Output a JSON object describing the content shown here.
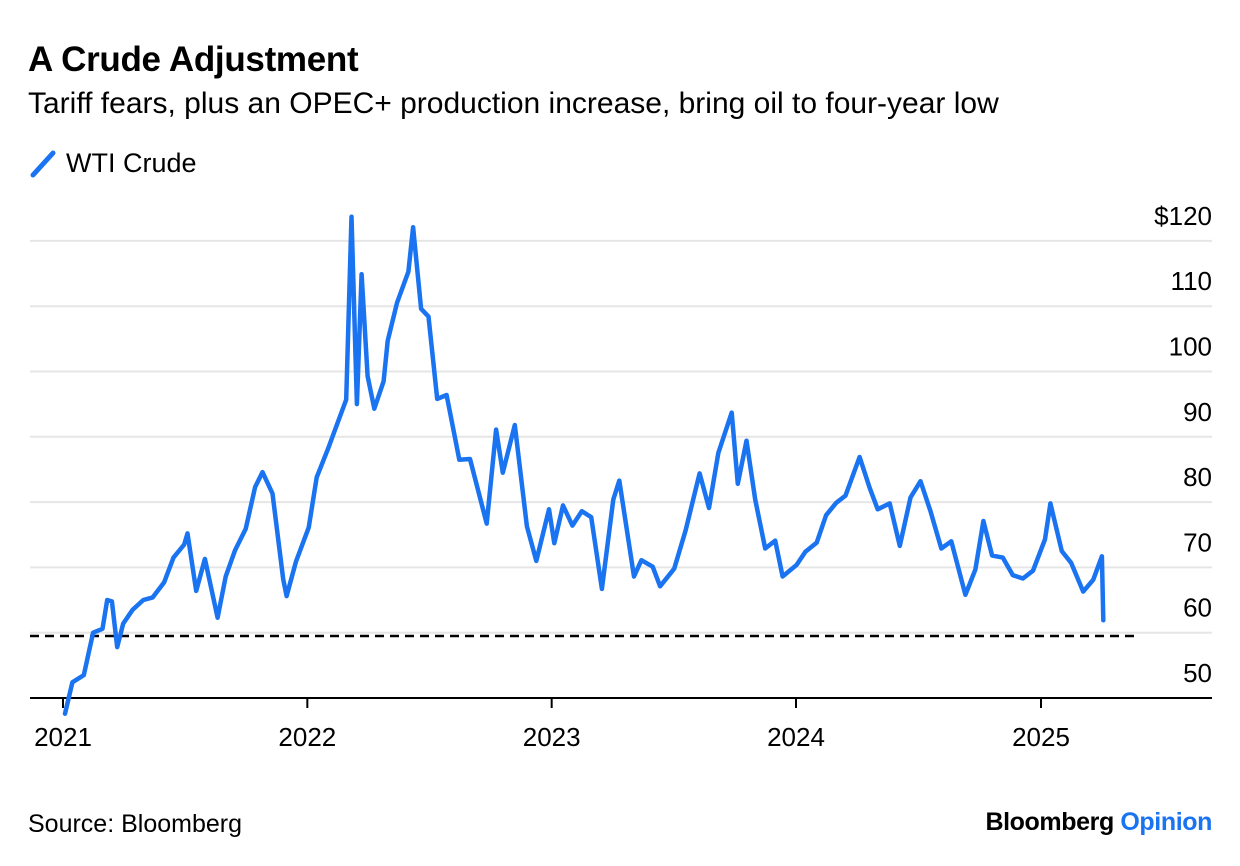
{
  "header": {
    "title": "A Crude Adjustment",
    "subtitle": "Tariff fears, plus an OPEC+ production increase, bring oil to four-year low"
  },
  "legend": {
    "label": "WTI Crude",
    "color": "#1a73f0"
  },
  "footer": {
    "source": "Source: Bloomberg",
    "brand_main": "Bloomberg",
    "brand_accent": "Opinion",
    "brand_accent_color": "#1a73f0"
  },
  "chart_data": {
    "type": "line",
    "title": "A Crude Adjustment",
    "subtitle": "Tariff fears, plus an OPEC+ production increase, bring oil to four-year low",
    "xlabel": "",
    "ylabel": "",
    "x_ticks": [
      "2021",
      "2022",
      "2023",
      "2024",
      "2025"
    ],
    "y_ticks": [
      "50",
      "60",
      "70",
      "80",
      "90",
      "100",
      "110",
      "$120"
    ],
    "y_tick_values": [
      50,
      60,
      70,
      80,
      90,
      100,
      110,
      120
    ],
    "xlim": [
      "2021-01-01",
      "2025-06-15"
    ],
    "ylim": [
      46,
      122
    ],
    "grid": true,
    "legend_position": "top-left",
    "reference_line": {
      "value": 59.5,
      "style": "dashed"
    },
    "series": [
      {
        "name": "WTI Crude",
        "color": "#1a73f0",
        "points": [
          [
            "2021-01-04",
            47.6
          ],
          [
            "2021-01-15",
            52.4
          ],
          [
            "2021-02-01",
            53.5
          ],
          [
            "2021-02-15",
            60.0
          ],
          [
            "2021-03-01",
            60.6
          ],
          [
            "2021-03-08",
            65.0
          ],
          [
            "2021-03-15",
            64.8
          ],
          [
            "2021-03-23",
            57.8
          ],
          [
            "2021-04-01",
            61.4
          ],
          [
            "2021-04-15",
            63.5
          ],
          [
            "2021-05-01",
            65.0
          ],
          [
            "2021-05-15",
            65.4
          ],
          [
            "2021-06-01",
            67.7
          ],
          [
            "2021-06-15",
            71.5
          ],
          [
            "2021-07-01",
            73.5
          ],
          [
            "2021-07-06",
            75.2
          ],
          [
            "2021-07-19",
            66.4
          ],
          [
            "2021-08-01",
            71.3
          ],
          [
            "2021-08-20",
            62.3
          ],
          [
            "2021-09-01",
            68.6
          ],
          [
            "2021-09-15",
            72.6
          ],
          [
            "2021-10-01",
            75.9
          ],
          [
            "2021-10-15",
            82.3
          ],
          [
            "2021-10-26",
            84.6
          ],
          [
            "2021-11-10",
            81.3
          ],
          [
            "2021-11-26",
            68.2
          ],
          [
            "2021-12-01",
            65.6
          ],
          [
            "2021-12-15",
            70.9
          ],
          [
            "2022-01-03",
            76.1
          ],
          [
            "2022-01-15",
            83.8
          ],
          [
            "2022-02-01",
            88.2
          ],
          [
            "2022-02-15",
            92.1
          ],
          [
            "2022-02-28",
            95.7
          ],
          [
            "2022-03-08",
            123.7
          ],
          [
            "2022-03-16",
            95.0
          ],
          [
            "2022-03-23",
            114.9
          ],
          [
            "2022-04-01",
            99.3
          ],
          [
            "2022-04-11",
            94.3
          ],
          [
            "2022-04-25",
            98.5
          ],
          [
            "2022-05-01",
            104.7
          ],
          [
            "2022-05-15",
            110.5
          ],
          [
            "2022-06-01",
            115.3
          ],
          [
            "2022-06-08",
            122.1
          ],
          [
            "2022-06-20",
            109.6
          ],
          [
            "2022-07-01",
            108.4
          ],
          [
            "2022-07-14",
            95.8
          ],
          [
            "2022-07-28",
            96.4
          ],
          [
            "2022-08-16",
            86.5
          ],
          [
            "2022-09-01",
            86.6
          ],
          [
            "2022-09-26",
            76.7
          ],
          [
            "2022-10-10",
            91.1
          ],
          [
            "2022-10-20",
            84.5
          ],
          [
            "2022-11-07",
            91.8
          ],
          [
            "2022-11-25",
            76.3
          ],
          [
            "2022-12-09",
            71.0
          ],
          [
            "2022-12-28",
            78.9
          ],
          [
            "2023-01-05",
            73.7
          ],
          [
            "2023-01-18",
            79.5
          ],
          [
            "2023-02-01",
            76.4
          ],
          [
            "2023-02-15",
            78.6
          ],
          [
            "2023-03-01",
            77.7
          ],
          [
            "2023-03-17",
            66.7
          ],
          [
            "2023-04-03",
            80.4
          ],
          [
            "2023-04-12",
            83.3
          ],
          [
            "2023-05-04",
            68.6
          ],
          [
            "2023-05-15",
            71.1
          ],
          [
            "2023-06-01",
            70.1
          ],
          [
            "2023-06-12",
            67.1
          ],
          [
            "2023-07-03",
            69.8
          ],
          [
            "2023-07-20",
            75.6
          ],
          [
            "2023-08-10",
            84.4
          ],
          [
            "2023-08-24",
            79.1
          ],
          [
            "2023-09-07",
            87.5
          ],
          [
            "2023-09-27",
            93.7
          ],
          [
            "2023-10-06",
            82.8
          ],
          [
            "2023-10-19",
            89.4
          ],
          [
            "2023-11-01",
            80.4
          ],
          [
            "2023-11-16",
            72.9
          ],
          [
            "2023-12-01",
            74.1
          ],
          [
            "2023-12-12",
            68.6
          ],
          [
            "2024-01-02",
            70.4
          ],
          [
            "2024-01-15",
            72.4
          ],
          [
            "2024-02-01",
            73.8
          ],
          [
            "2024-02-15",
            78.0
          ],
          [
            "2024-03-01",
            79.9
          ],
          [
            "2024-03-15",
            81.0
          ],
          [
            "2024-04-05",
            86.9
          ],
          [
            "2024-04-20",
            82.2
          ],
          [
            "2024-05-02",
            78.9
          ],
          [
            "2024-05-20",
            79.8
          ],
          [
            "2024-06-04",
            73.3
          ],
          [
            "2024-06-20",
            80.7
          ],
          [
            "2024-07-05",
            83.2
          ],
          [
            "2024-07-20",
            78.6
          ],
          [
            "2024-08-05",
            72.9
          ],
          [
            "2024-08-20",
            74.0
          ],
          [
            "2024-09-10",
            65.8
          ],
          [
            "2024-09-25",
            69.7
          ],
          [
            "2024-10-07",
            77.1
          ],
          [
            "2024-10-20",
            71.8
          ],
          [
            "2024-11-05",
            71.5
          ],
          [
            "2024-11-20",
            68.8
          ],
          [
            "2024-12-05",
            68.3
          ],
          [
            "2024-12-20",
            69.5
          ],
          [
            "2025-01-07",
            74.3
          ],
          [
            "2025-01-15",
            79.8
          ],
          [
            "2025-02-01",
            72.5
          ],
          [
            "2025-02-15",
            70.7
          ],
          [
            "2025-03-05",
            66.3
          ],
          [
            "2025-03-20",
            68.1
          ],
          [
            "2025-04-02",
            71.7
          ],
          [
            "2025-04-04",
            61.9
          ]
        ]
      }
    ]
  }
}
